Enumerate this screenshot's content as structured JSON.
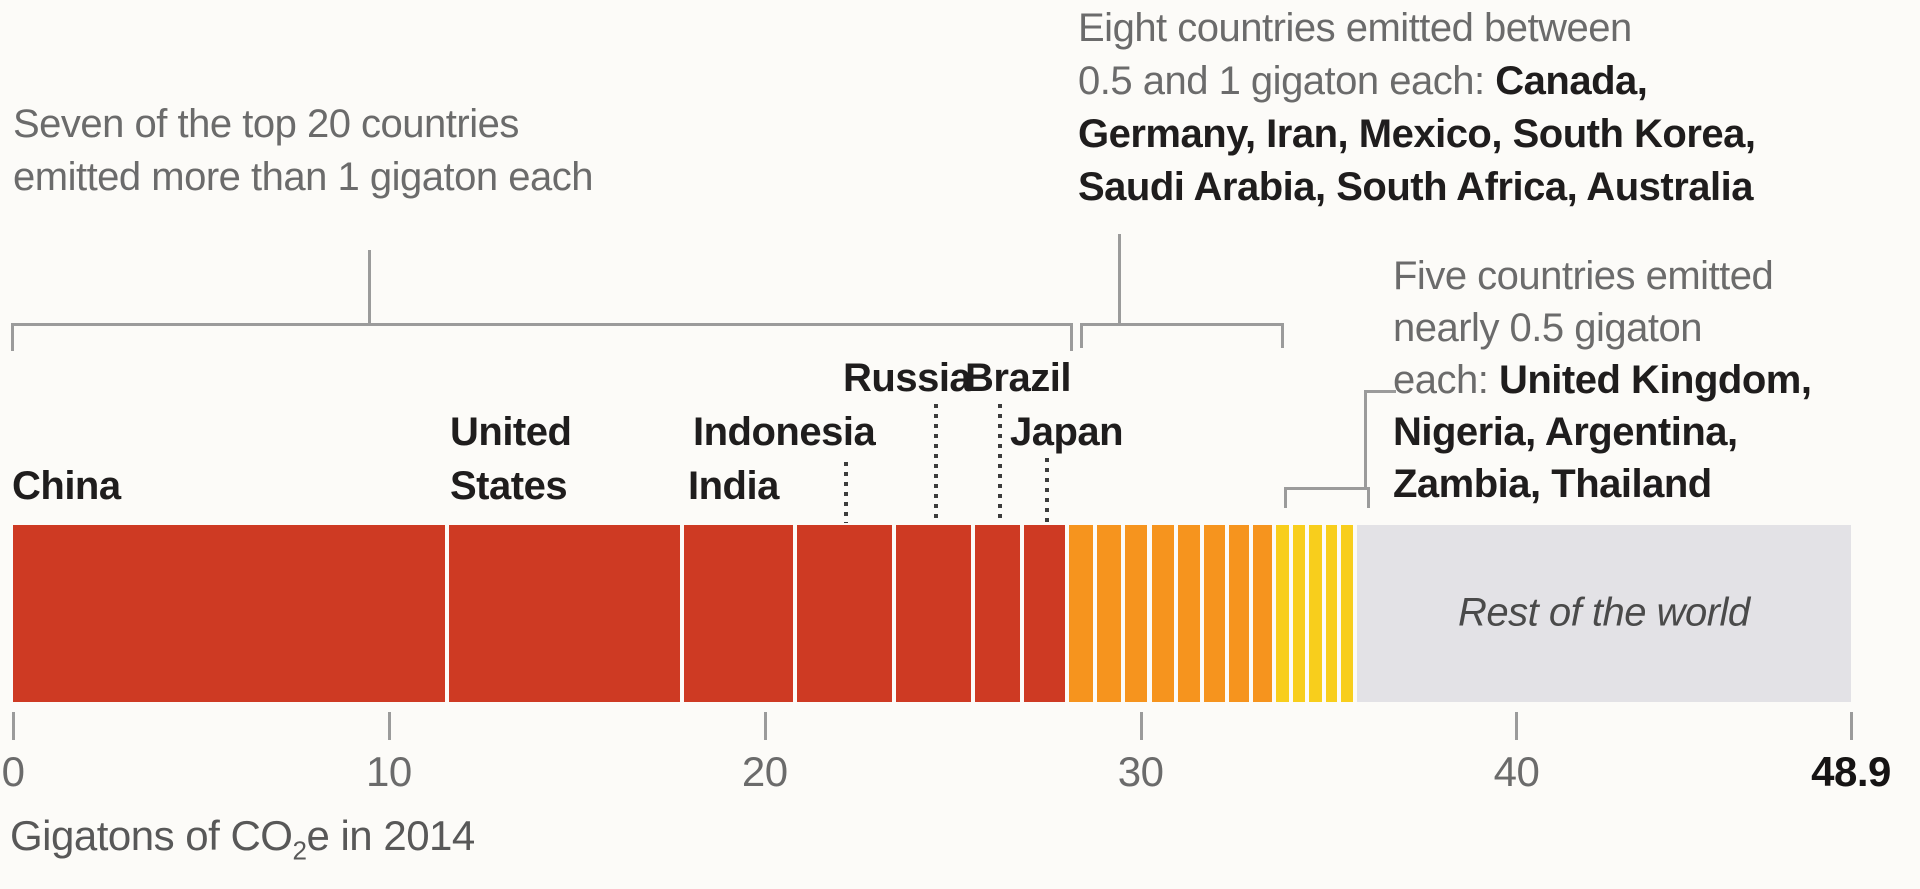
{
  "chart_data": {
    "type": "bar",
    "orientation": "horizontal-stacked",
    "title": "",
    "xlabel": {
      "prefix": "Gigatons of CO",
      "sub": "2",
      "suffix": "e in 2014"
    },
    "xlim": [
      0,
      48.9
    ],
    "grid": false,
    "x_ticks": [
      {
        "label": "0",
        "value": 0,
        "bold": false
      },
      {
        "label": "10",
        "value": 10,
        "bold": false
      },
      {
        "label": "20",
        "value": 20,
        "bold": false
      },
      {
        "label": "30",
        "value": 30,
        "bold": false
      },
      {
        "label": "40",
        "value": 40,
        "bold": false
      },
      {
        "label": "48.9",
        "value": 48.9,
        "bold": true
      }
    ],
    "groups": [
      {
        "name": "more-than-1-gigaton",
        "description": "Seven of the top 20 countries emitted more than 1 gigaton each",
        "color": "#ce3a23",
        "countries": [
          {
            "name": "China",
            "value": 11.6
          },
          {
            "name": "United States",
            "value": 6.25
          },
          {
            "name": "India",
            "value": 3.0
          },
          {
            "name": "Indonesia",
            "value": 2.65
          },
          {
            "name": "Russia",
            "value": 2.1
          },
          {
            "name": "Brazil",
            "value": 1.3
          },
          {
            "name": "Japan",
            "value": 1.2
          }
        ]
      },
      {
        "name": "between-0.5-and-1-gigaton",
        "description": "Eight countries emitted between 0.5 and 1 gigaton each",
        "color": "#f6941e",
        "countries": [
          {
            "name": "Canada",
            "value": 0.75
          },
          {
            "name": "Germany",
            "value": 0.73
          },
          {
            "name": "Iran",
            "value": 0.71
          },
          {
            "name": "Mexico",
            "value": 0.7
          },
          {
            "name": "South Korea",
            "value": 0.69
          },
          {
            "name": "Saudi Arabia",
            "value": 0.66
          },
          {
            "name": "South Africa",
            "value": 0.64
          },
          {
            "name": "Australia",
            "value": 0.62
          }
        ]
      },
      {
        "name": "nearly-0.5-gigaton",
        "description": "Five countries emitted nearly 0.5 gigaton each",
        "color": "#f8ce1c",
        "countries": [
          {
            "name": "United Kingdom",
            "value": 0.45
          },
          {
            "name": "Nigeria",
            "value": 0.44
          },
          {
            "name": "Argentina",
            "value": 0.43
          },
          {
            "name": "Zambia",
            "value": 0.42
          },
          {
            "name": "Thailand",
            "value": 0.41
          }
        ]
      }
    ],
    "rest": {
      "name": "Rest of the world",
      "value": 13.15,
      "color": "#e3e2e6"
    }
  },
  "annotations": {
    "red_note": {
      "line1": "Seven of the top 20 countries",
      "line2": "emitted more than 1 gigaton each"
    },
    "orange_note": {
      "line1": "Eight countries emitted between",
      "line2_regular": "0.5 and 1 gigaton each:  ",
      "line2_bold": "Canada,",
      "line3_bold": "Germany, Iran, Mexico, South Korea,",
      "line4_bold": "Saudi Arabia, South Africa, Australia"
    },
    "yellow_note": {
      "line1": "Five countries emitted",
      "line2": "nearly 0.5 gigaton",
      "line3_regular": "each: ",
      "line3_bold": "United Kingdom,",
      "line4_bold": "Nigeria, Argentina,",
      "line5_bold": "Zambia, Thailand"
    }
  },
  "bar_labels": {
    "china": "China",
    "united": "United",
    "states": "States",
    "indonesia": "Indonesia",
    "india": "India",
    "russia": "Russia",
    "brazil": "Brazil",
    "japan": "Japan"
  },
  "rest_label": "Rest of the world"
}
